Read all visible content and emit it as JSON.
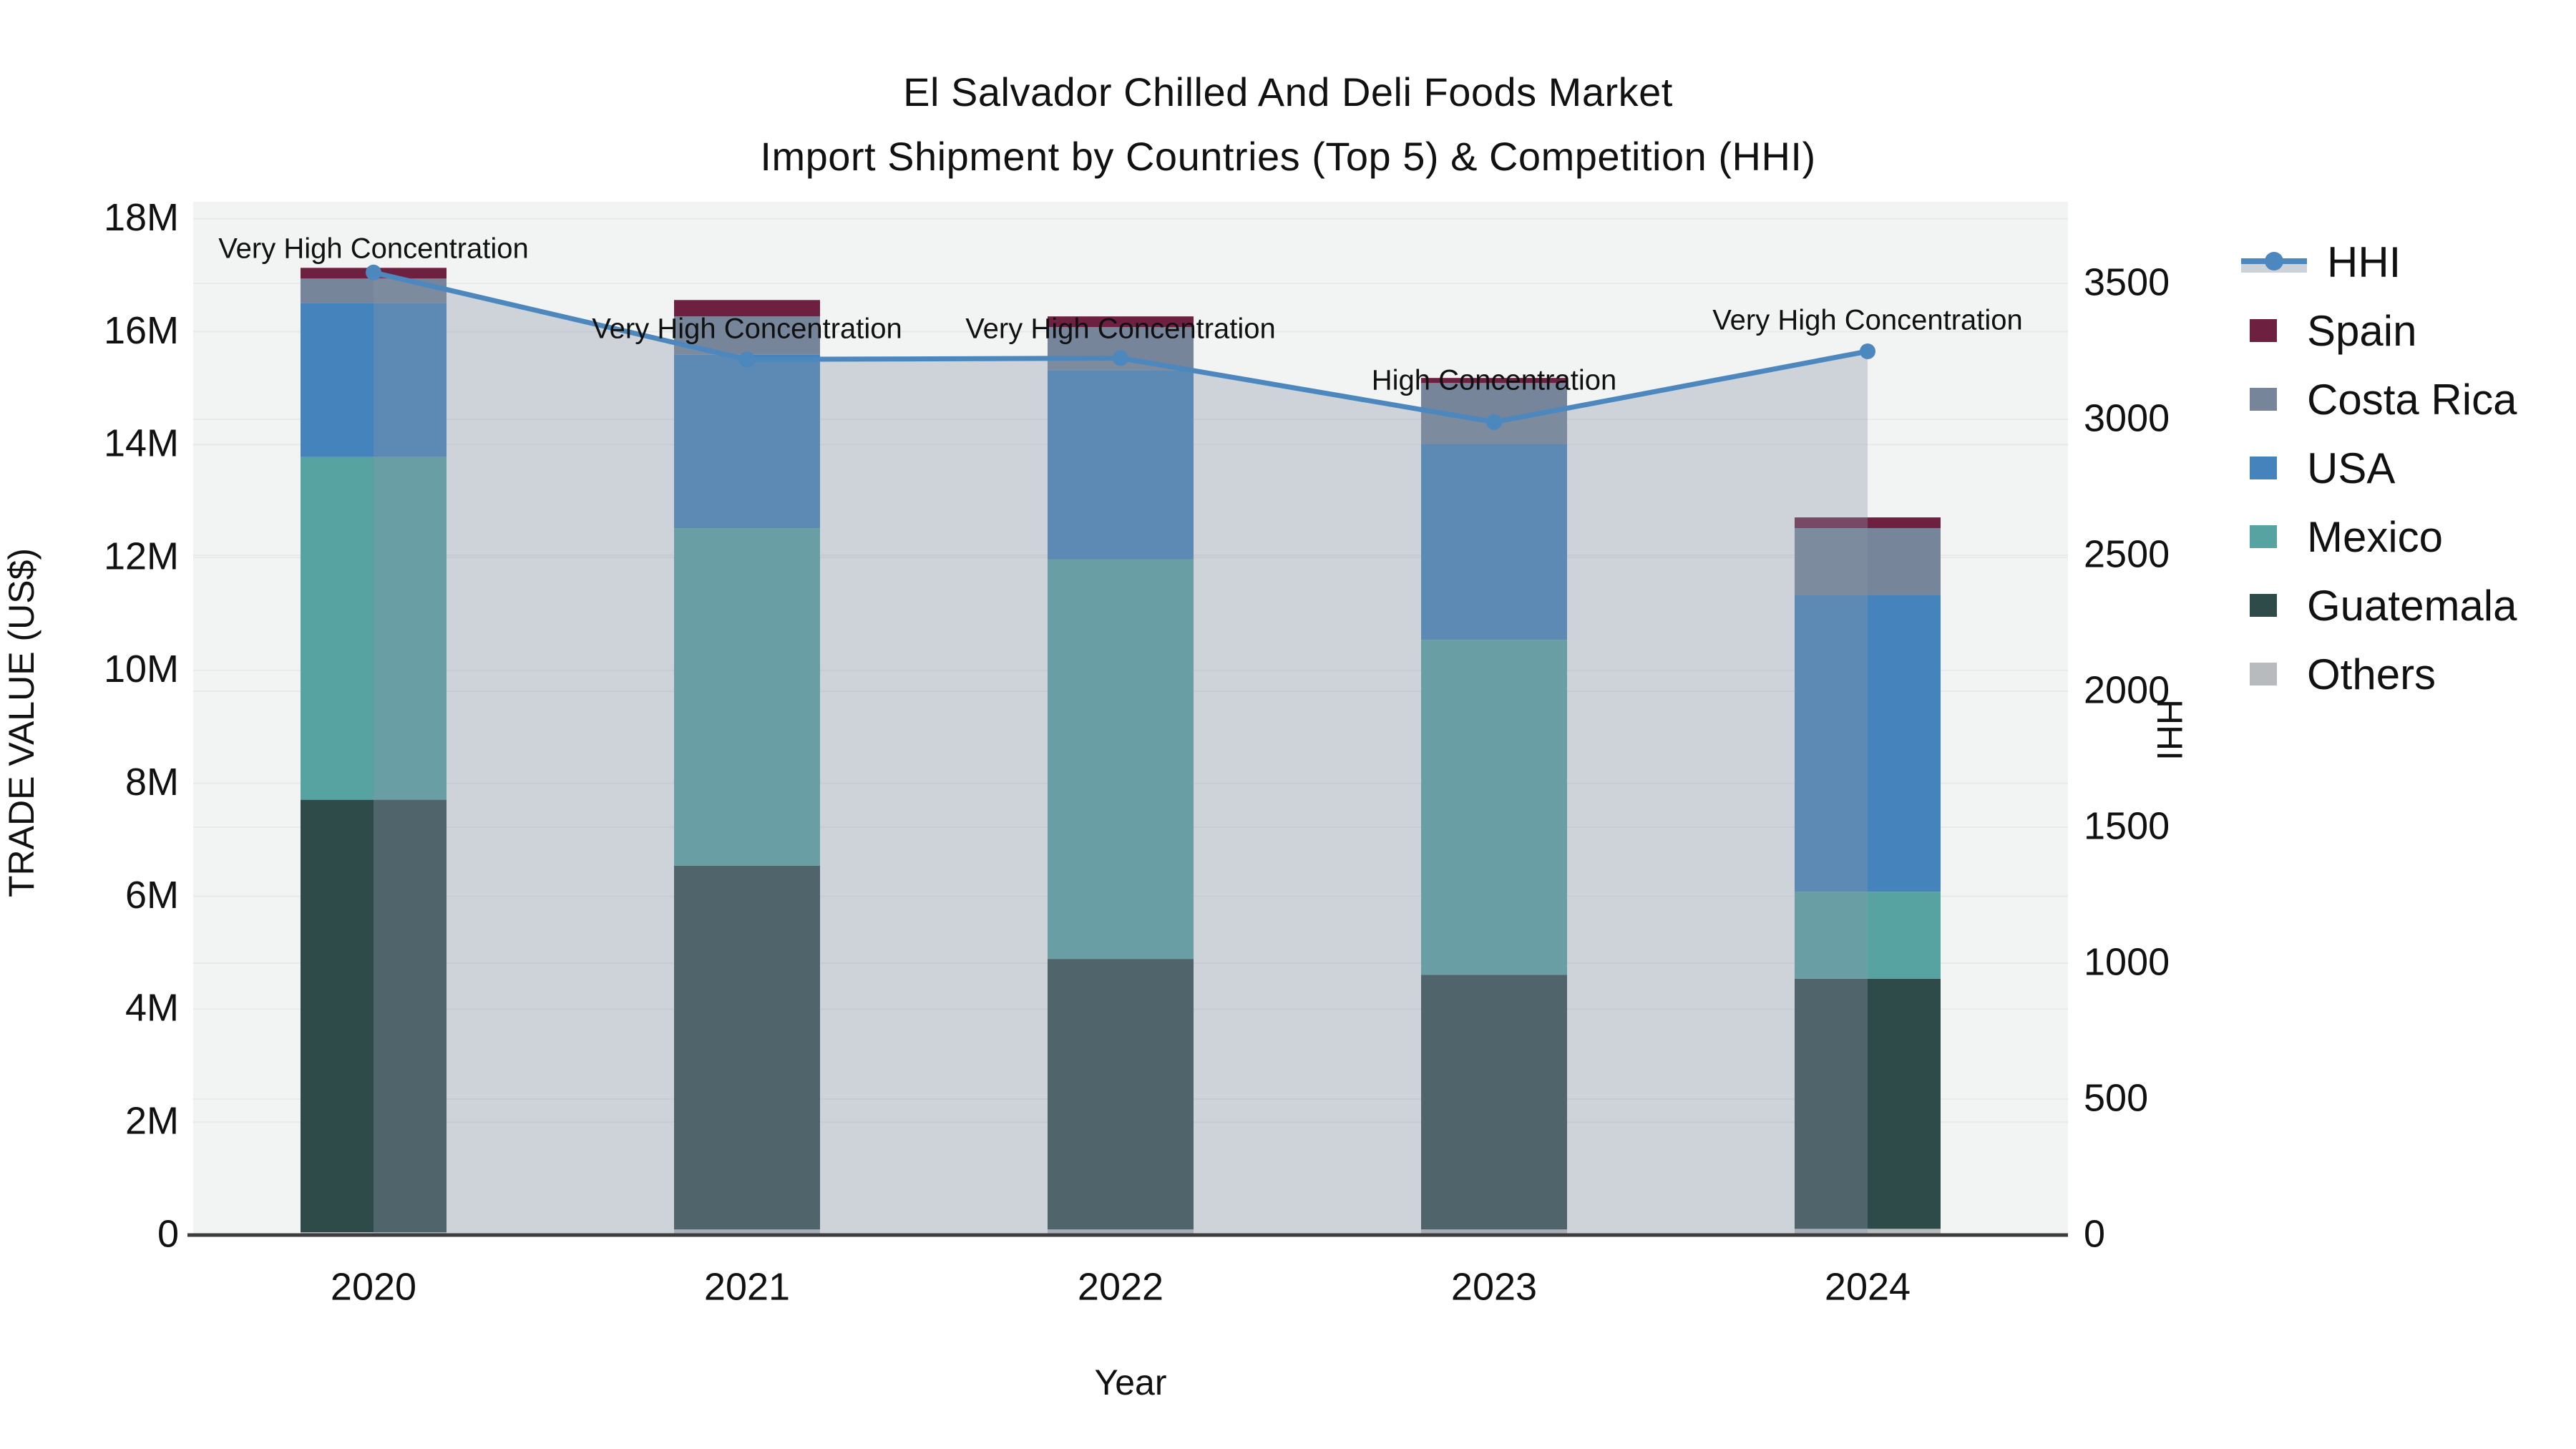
{
  "title": {
    "line1": "El Salvador Chilled And Deli Foods Market",
    "line2": "Import Shipment by Countries (Top 5) & Competition (HHI)"
  },
  "axes": {
    "x": {
      "title": "Year",
      "categories": [
        "2020",
        "2021",
        "2022",
        "2023",
        "2024"
      ]
    },
    "y_left": {
      "title": "TRADE VALUE (US$)",
      "tick_labels": [
        "0",
        "2M",
        "4M",
        "6M",
        "8M",
        "10M",
        "12M",
        "14M",
        "16M",
        "18M"
      ],
      "tick_values_millions": [
        0,
        2,
        4,
        6,
        8,
        10,
        12,
        14,
        16,
        18
      ]
    },
    "y_right": {
      "title": "HHI",
      "tick_labels": [
        "0",
        "500",
        "1000",
        "1500",
        "2000",
        "2500",
        "3000",
        "3500"
      ],
      "tick_values": [
        0,
        500,
        1000,
        1500,
        2000,
        2500,
        3000,
        3500
      ]
    }
  },
  "chart_data": {
    "type": "bar+line",
    "title": "El Salvador Chilled And Deli Foods Market — Import Shipment by Countries (Top 5) & Competition (HHI)",
    "categories": [
      "2020",
      "2021",
      "2022",
      "2023",
      "2024"
    ],
    "bar_mode": "stacked",
    "value_unit": "millions USD",
    "series": [
      {
        "name": "Others",
        "color": "#b7bbbe",
        "values": [
          0.05,
          0.1,
          0.1,
          0.1,
          0.11
        ]
      },
      {
        "name": "Guatemala",
        "color": "#2e4b4a",
        "values": [
          7.66,
          6.44,
          4.79,
          4.51,
          4.43
        ]
      },
      {
        "name": "Mexico",
        "color": "#57a3a2",
        "values": [
          6.07,
          5.98,
          7.08,
          5.93,
          1.54
        ]
      },
      {
        "name": "USA",
        "color": "#4483bb",
        "values": [
          2.73,
          3.07,
          3.35,
          3.47,
          5.25
        ]
      },
      {
        "name": "Costa Rica",
        "color": "#76859a",
        "values": [
          0.43,
          0.68,
          0.76,
          1.08,
          1.19
        ]
      },
      {
        "name": "Spain",
        "color": "#6e2040",
        "values": [
          0.19,
          0.29,
          0.19,
          0.09,
          0.19
        ]
      }
    ],
    "stack_totals_millions": [
      17.13,
      16.56,
      16.27,
      15.18,
      12.71
    ],
    "line_series": {
      "name": "HHI",
      "axis": "right",
      "color": "#4c87bd",
      "area_fill": "rgba(140,152,170,0.35)",
      "values": [
        3540,
        3220,
        3225,
        2990,
        3250
      ]
    },
    "annotations": [
      {
        "category": "2020",
        "text": "Very High Concentration"
      },
      {
        "category": "2021",
        "text": "Very High Concentration"
      },
      {
        "category": "2022",
        "text": "Very High Concentration"
      },
      {
        "category": "2023",
        "text": "High Concentration"
      },
      {
        "category": "2024",
        "text": "Very High Concentration"
      }
    ],
    "xlabel": "Year",
    "ylabel_left": "TRADE VALUE (US$)",
    "ylabel_right": "HHI",
    "y_left_range_millions": [
      0,
      18.3
    ],
    "y_right_range": [
      0,
      3800
    ],
    "grid": true,
    "legend_position": "right",
    "plot_background": "#f2f3f3",
    "gridline_color": "#e7e9ea",
    "axisline_color": "#3d3d3d"
  },
  "legend": {
    "items": [
      {
        "label": "HHI",
        "type": "line",
        "color": "#4c87bd"
      },
      {
        "label": "Spain",
        "type": "swatch",
        "color": "#6e2040"
      },
      {
        "label": "Costa Rica",
        "type": "swatch",
        "color": "#76859a"
      },
      {
        "label": "USA",
        "type": "swatch",
        "color": "#4483bb"
      },
      {
        "label": "Mexico",
        "type": "swatch",
        "color": "#57a3a2"
      },
      {
        "label": "Guatemala",
        "type": "swatch",
        "color": "#2e4b4a"
      },
      {
        "label": "Others",
        "type": "swatch",
        "color": "#b7bbbe"
      }
    ]
  }
}
